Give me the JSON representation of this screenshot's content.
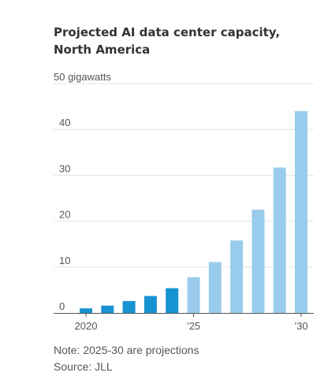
{
  "chart_data": {
    "type": "bar",
    "title": "Projected AI data center capacity, North America",
    "y_unit_label": "gigawatts",
    "ylim": [
      0,
      50
    ],
    "yticks": [
      0,
      10,
      20,
      30,
      40,
      50
    ],
    "x": [
      2020,
      2021,
      2022,
      2023,
      2024,
      2025,
      2026,
      2027,
      2028,
      2029,
      2030
    ],
    "x_tick_labels": [
      {
        "x": 2020,
        "label": "2020"
      },
      {
        "x": 2025,
        "label": "’25"
      },
      {
        "x": 2030,
        "label": "’30"
      }
    ],
    "values": [
      1.0,
      1.6,
      2.6,
      3.7,
      5.4,
      7.8,
      11.1,
      15.8,
      22.5,
      31.7,
      44.0
    ],
    "projection_start": 2025,
    "colors": {
      "actual": "#1793d1",
      "projected": "#99ccec"
    },
    "grid": true,
    "note": "Note: 2025-30 are projections",
    "source": "Source: JLL"
  }
}
